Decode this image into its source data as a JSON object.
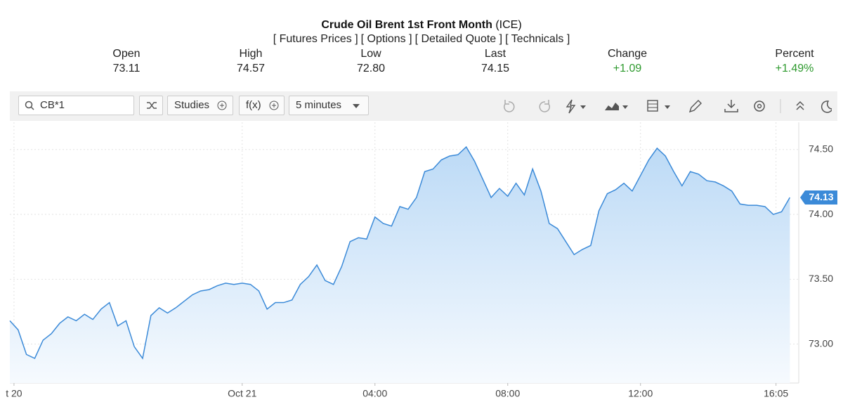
{
  "header": {
    "title": "Crude Oil Brent 1st Front Month",
    "exchange": "(ICE)",
    "links": [
      "[ Futures Prices ]",
      "[ Options ]",
      "[ Detailed Quote ]",
      "[ Technicals ]"
    ]
  },
  "quote": {
    "labels": [
      "Open",
      "High",
      "Low",
      "Last",
      "Change",
      "Percent"
    ],
    "values": [
      "73.11",
      "74.57",
      "72.80",
      "74.15",
      "+1.09",
      "+1.49%"
    ]
  },
  "toolbar": {
    "search": "CB*1",
    "studies": "Studies",
    "fx": "f(x)",
    "interval": "5 minutes"
  },
  "chart_data": {
    "type": "area",
    "series": [
      {
        "color": "#3b8ad8",
        "values": [
          73.18,
          73.11,
          72.92,
          72.89,
          73.03,
          73.08,
          73.16,
          73.21,
          73.18,
          73.23,
          73.19,
          73.27,
          73.32,
          73.14,
          73.18,
          72.98,
          72.89,
          73.22,
          73.28,
          73.24,
          73.28,
          73.33,
          73.38,
          73.41,
          73.42,
          73.45,
          73.47,
          73.46,
          73.47,
          73.46,
          73.41,
          73.27,
          73.32,
          73.32,
          73.34,
          73.46,
          73.52,
          73.61,
          73.49,
          73.46,
          73.6,
          73.79,
          73.82,
          73.81,
          73.98,
          73.93,
          73.91,
          74.06,
          74.04,
          74.13,
          74.33,
          74.35,
          74.42,
          74.45,
          74.46,
          74.52,
          74.41,
          74.27,
          74.13,
          74.2,
          74.14,
          74.24,
          74.15,
          74.35,
          74.18,
          73.93,
          73.89,
          73.79,
          73.69,
          73.73,
          73.76,
          74.03,
          74.16,
          74.19,
          74.24,
          74.18,
          74.3,
          74.42,
          74.51,
          74.45,
          74.33,
          74.22,
          74.33,
          74.31,
          74.26,
          74.25,
          74.22,
          74.18,
          74.08,
          74.07,
          74.07,
          74.06,
          74.0,
          74.02,
          74.13
        ]
      }
    ],
    "xlim": [
      0,
      95.07
    ],
    "xticks": [
      {
        "value": 0.5,
        "label": "t 20"
      },
      {
        "value": 28,
        "label": "Oct 21"
      },
      {
        "value": 44,
        "label": "04:00"
      },
      {
        "value": 60,
        "label": "08:00"
      },
      {
        "value": 76,
        "label": "12:00"
      },
      {
        "value": 92.33,
        "label": "16:05"
      }
    ],
    "ylim": [
      72.7,
      74.71
    ],
    "yticks": [
      {
        "value": 73,
        "label": "73.00"
      },
      {
        "value": 73.5,
        "label": "73.50"
      },
      {
        "value": 74,
        "label": "74.00"
      },
      {
        "value": 74.5,
        "label": "74.50"
      }
    ],
    "grid": true
  }
}
